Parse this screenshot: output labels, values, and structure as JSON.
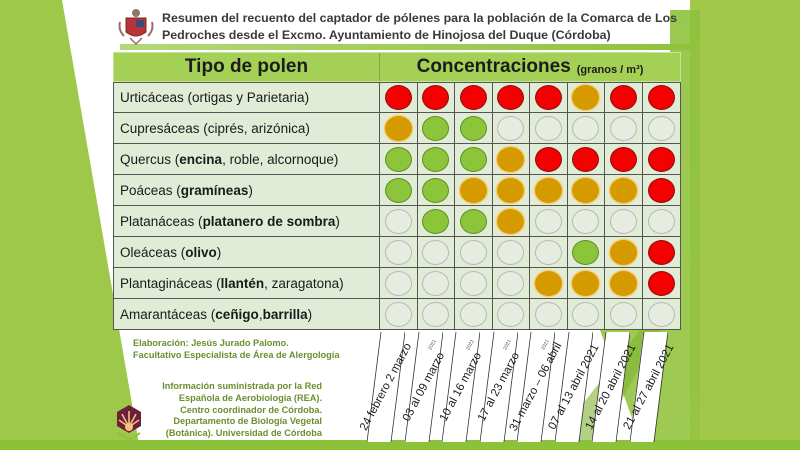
{
  "header": {
    "title": "Resumen del recuento del captador de pólenes para la población de la Comarca de Los Pedroches desde el Excmo. Ayuntamiento de Hinojosa del Duque (Córdoba)",
    "crest_icon": "hinojosa-del-duque-coat-of-arms"
  },
  "table": {
    "col_type": "Tipo de polen",
    "col_conc": "Concentraciones",
    "col_conc_unit": "(granos / m³)",
    "legend_colors": {
      "red": "#f40000",
      "orange": "#d49a00",
      "green": "#8cc43a",
      "empty": "#e6ecdf"
    },
    "weeks": [
      {
        "label": "24 febrero 2 marzo",
        "year": ""
      },
      {
        "label": "03 al 09 marzo",
        "year": "2021"
      },
      {
        "label": "10 al 16 marzo",
        "year": "2021"
      },
      {
        "label": "17 al 23 marzo",
        "year": "2021"
      },
      {
        "label": "31 marzo – 06 abril",
        "year": "2021"
      },
      {
        "label": "07 al 13 abril 2021",
        "year": ""
      },
      {
        "label": "14 al 20 abril 2021",
        "year": ""
      },
      {
        "label": "21 al 27 abril 2021",
        "year": ""
      }
    ],
    "rows": [
      {
        "name_parts": [
          {
            "t": "Urticáceas (ortigas y Parietaria)",
            "b": false
          }
        ],
        "levels": [
          "red",
          "red",
          "red",
          "red",
          "red",
          "orange",
          "red",
          "red"
        ]
      },
      {
        "name_parts": [
          {
            "t": "Cupresáceas (ciprés, arizónica)",
            "b": false
          }
        ],
        "levels": [
          "orange",
          "green",
          "green",
          "empty",
          "empty",
          "empty",
          "empty",
          "empty"
        ]
      },
      {
        "name_parts": [
          {
            "t": "Quercus (",
            "b": false
          },
          {
            "t": "encina",
            "b": true
          },
          {
            "t": ", roble, alcornoque)",
            "b": false
          }
        ],
        "levels": [
          "green",
          "green",
          "green",
          "orange",
          "red",
          "red",
          "red",
          "red"
        ]
      },
      {
        "name_parts": [
          {
            "t": "Poáceas (",
            "b": false
          },
          {
            "t": "gramíneas",
            "b": true
          },
          {
            "t": ")",
            "b": false
          }
        ],
        "levels": [
          "green",
          "green",
          "orange",
          "orange",
          "orange",
          "orange",
          "orange",
          "red"
        ]
      },
      {
        "name_parts": [
          {
            "t": "Platanáceas (",
            "b": false
          },
          {
            "t": "platanero de sombra",
            "b": true
          },
          {
            "t": ")",
            "b": false
          }
        ],
        "levels": [
          "empty",
          "green",
          "green",
          "orange",
          "empty",
          "empty",
          "empty",
          "empty"
        ]
      },
      {
        "name_parts": [
          {
            "t": "Oleáceas (",
            "b": false
          },
          {
            "t": "olivo",
            "b": true
          },
          {
            "t": ")",
            "b": false
          }
        ],
        "levels": [
          "empty",
          "empty",
          "empty",
          "empty",
          "empty",
          "green",
          "orange",
          "red"
        ]
      },
      {
        "name_parts": [
          {
            "t": "Plantagináceas (",
            "b": false
          },
          {
            "t": "llantén",
            "b": true
          },
          {
            "t": ", zaragatona)",
            "b": false
          }
        ],
        "levels": [
          "empty",
          "empty",
          "empty",
          "empty",
          "orange",
          "orange",
          "orange",
          "red"
        ]
      },
      {
        "name_parts": [
          {
            "t": "Amarantáceas (",
            "b": false
          },
          {
            "t": "ceñigo",
            "b": true
          },
          {
            "t": ", ",
            "b": false
          },
          {
            "t": "barrilla",
            "b": true
          },
          {
            "t": ")",
            "b": false
          }
        ],
        "levels": [
          "empty",
          "empty",
          "empty",
          "empty",
          "empty",
          "empty",
          "empty",
          "empty"
        ]
      }
    ]
  },
  "credits": {
    "line1": "Elaboración: Jesús Jurado Palomo.",
    "line2": "Facultativo Especialista de Área de Alergología"
  },
  "source": {
    "line1": "Información suministrada por la Red",
    "line2": "Española de Aerobiología (REA).",
    "line3": "Centro coordinador de Córdoba.",
    "line4": "Departamento de Biología Vegetal",
    "line5": "(Botánica). Universidad de Córdoba",
    "logo_icon": "universidad-de-cordoba-logo"
  }
}
